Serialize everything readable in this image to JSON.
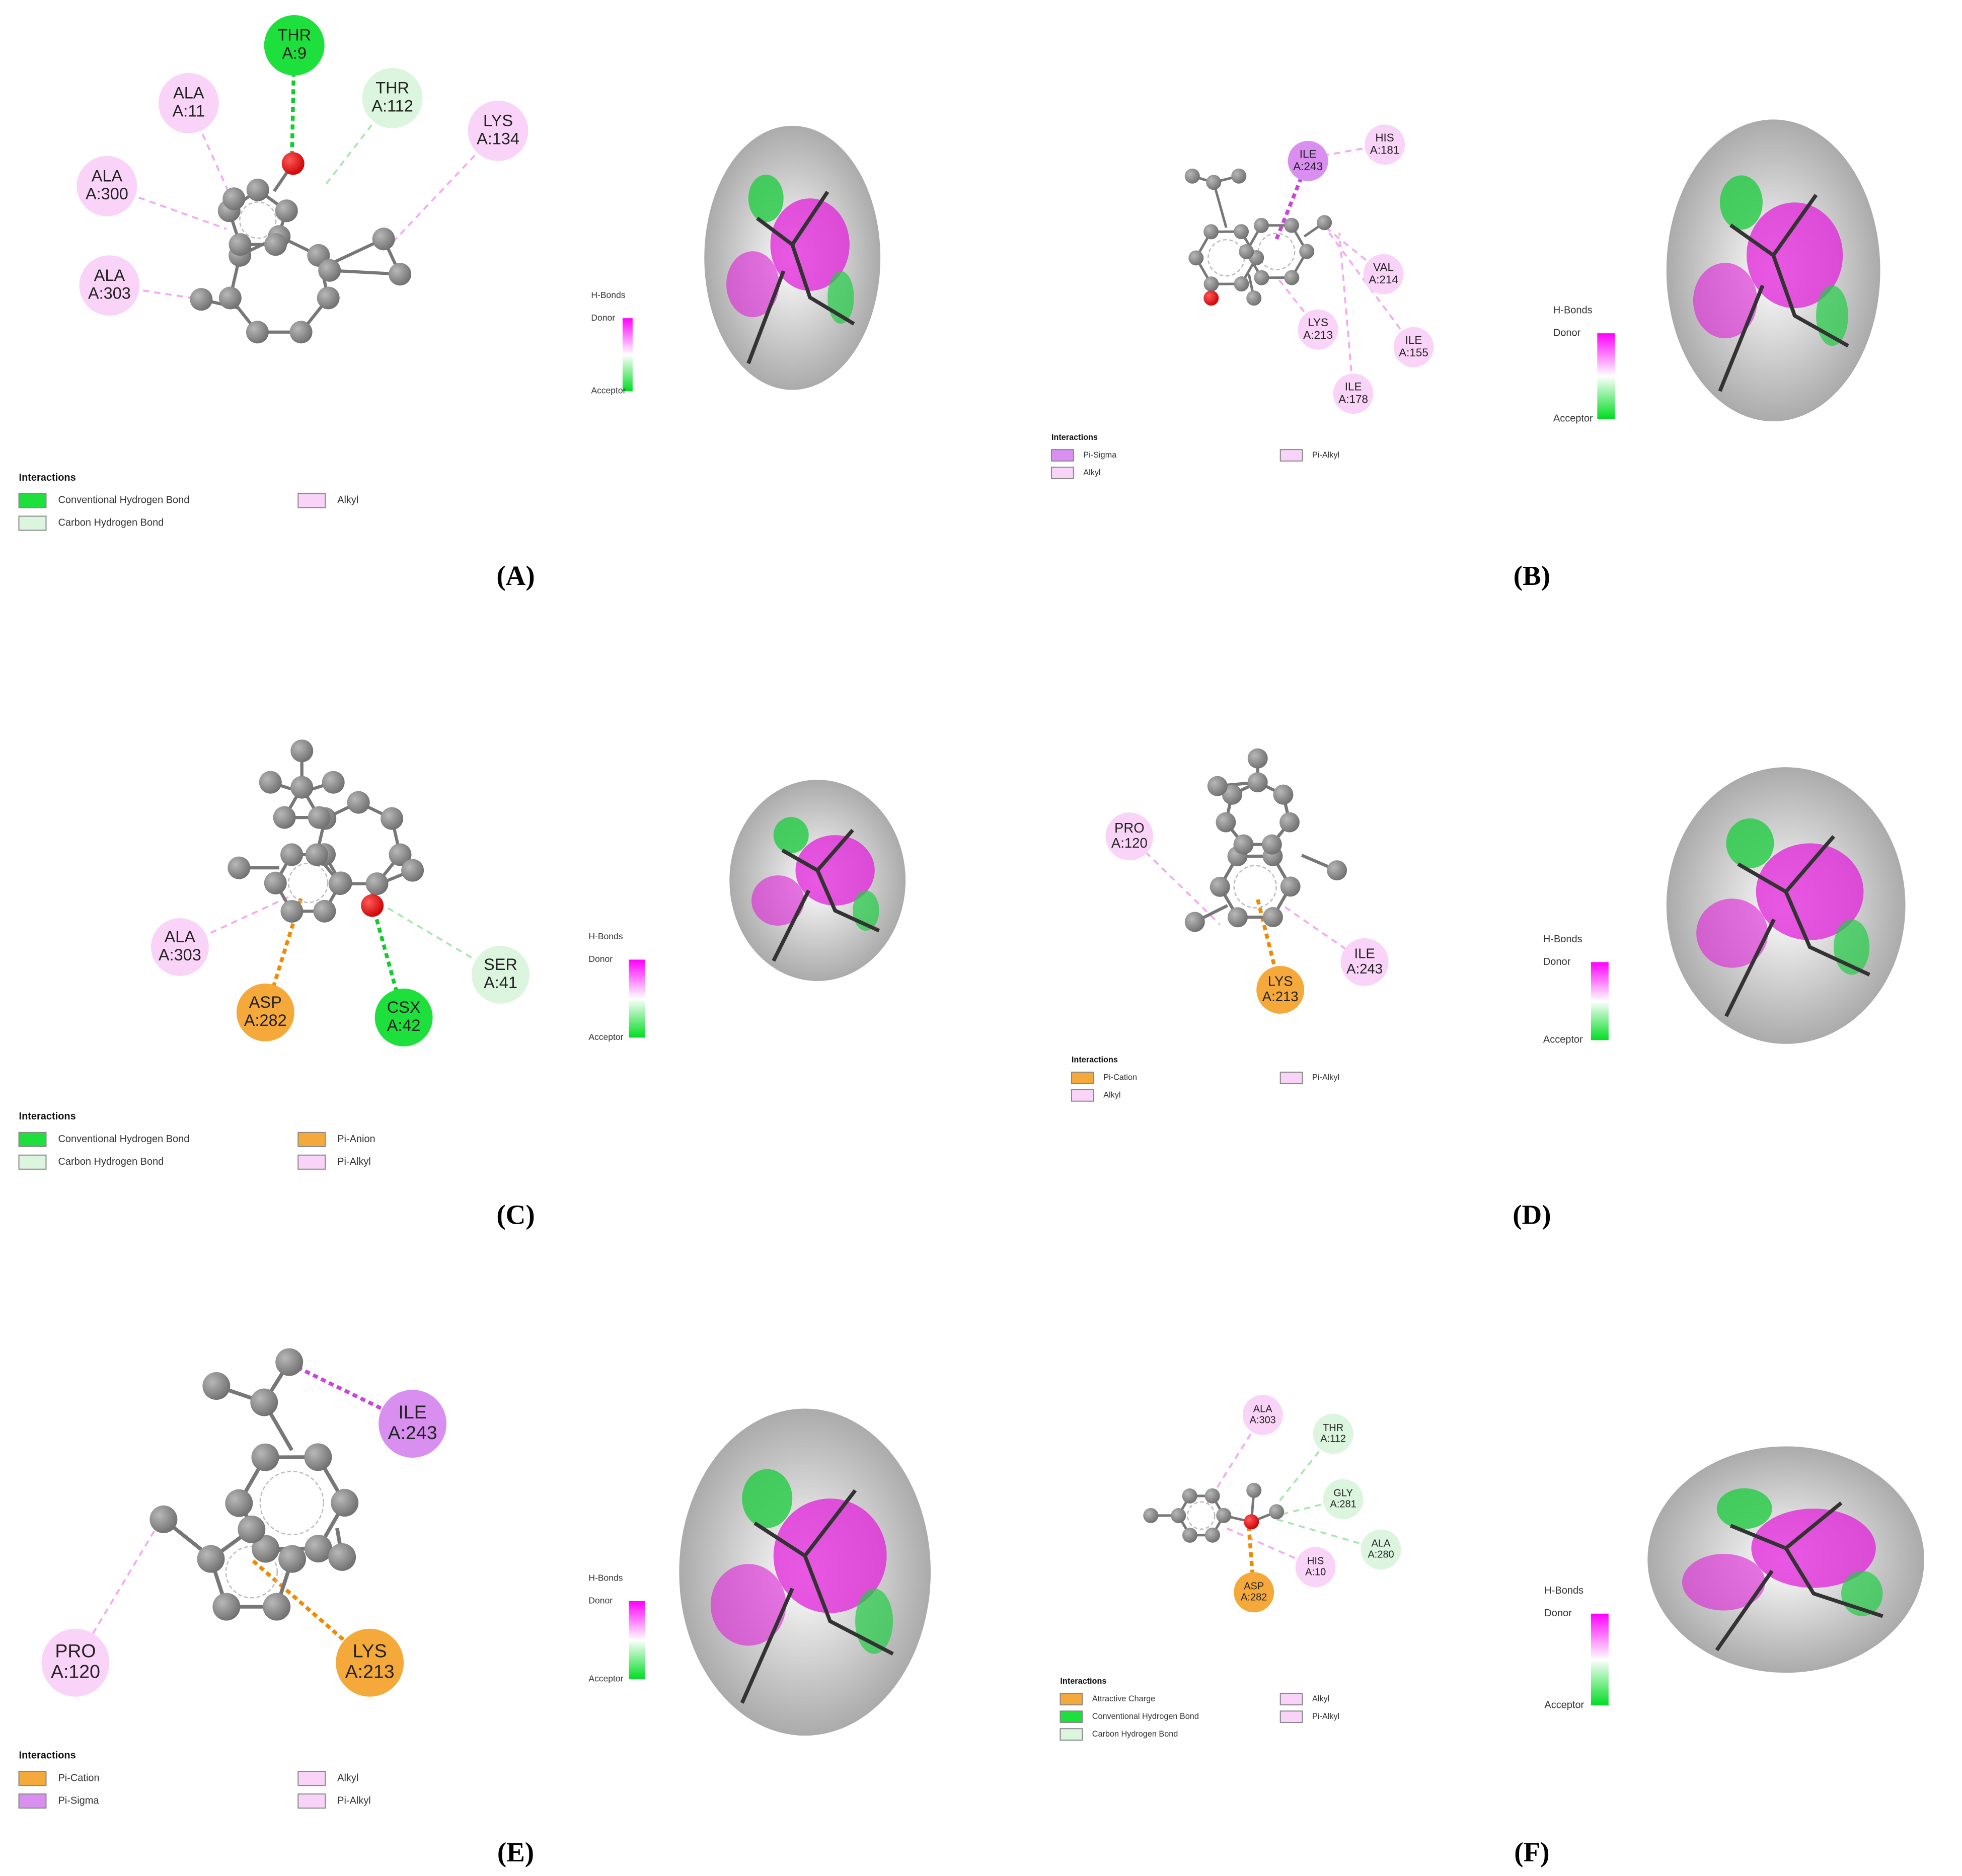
{
  "panels": [
    {
      "label": "(A)",
      "residues": [
        {
          "name": "THR",
          "id": "A:9",
          "color": "#1ee03c"
        },
        {
          "name": "THR",
          "id": "A:112",
          "color": "#dcf5df"
        },
        {
          "name": "ALA",
          "id": "A:11",
          "color": "#fad4f8"
        },
        {
          "name": "LYS",
          "id": "A:134",
          "color": "#fad4f8"
        },
        {
          "name": "ALA",
          "id": "A:300",
          "color": "#fad4f8"
        },
        {
          "name": "ALA",
          "id": "A:303",
          "color": "#fad4f8"
        }
      ],
      "legend_title": "Interactions",
      "legend": [
        {
          "name": "Conventional Hydrogen Bond",
          "color": "#1ee03c"
        },
        {
          "name": "Carbon Hydrogen Bond",
          "color": "#dcf5df"
        },
        {
          "name": "Alkyl",
          "color": "#fad4f8"
        }
      ],
      "hbonds": {
        "title": "H-Bonds",
        "donor": "Donor",
        "acceptor": "Acceptor"
      }
    },
    {
      "label": "(B)",
      "residues": [
        {
          "name": "ILE",
          "id": "A:243",
          "color": "#d88ff0"
        },
        {
          "name": "HIS",
          "id": "A:181",
          "color": "#fad4f8"
        },
        {
          "name": "VAL",
          "id": "A:214",
          "color": "#fad4f8"
        },
        {
          "name": "LYS",
          "id": "A:213",
          "color": "#fad4f8"
        },
        {
          "name": "ILE",
          "id": "A:155",
          "color": "#fad4f8"
        },
        {
          "name": "ILE",
          "id": "A:178",
          "color": "#fad4f8"
        }
      ],
      "legend_title": "Interactions",
      "legend": [
        {
          "name": "Pi-Sigma",
          "color": "#d88ff0"
        },
        {
          "name": "Alkyl",
          "color": "#fad4f8"
        },
        {
          "name": "Pi-Alkyl",
          "color": "#fad4f8"
        }
      ],
      "hbonds": {
        "title": "H-Bonds",
        "donor": "Donor",
        "acceptor": "Acceptor"
      }
    },
    {
      "label": "(C)",
      "residues": [
        {
          "name": "ALA",
          "id": "A:303",
          "color": "#fad4f8"
        },
        {
          "name": "ASP",
          "id": "A:282",
          "color": "#f5a93a"
        },
        {
          "name": "CSX",
          "id": "A:42",
          "color": "#1ee03c"
        },
        {
          "name": "SER",
          "id": "A:41",
          "color": "#dcf5df"
        }
      ],
      "legend_title": "Interactions",
      "legend": [
        {
          "name": "Conventional Hydrogen Bond",
          "color": "#1ee03c"
        },
        {
          "name": "Carbon Hydrogen Bond",
          "color": "#dcf5df"
        },
        {
          "name": "Pi-Anion",
          "color": "#f5a93a"
        },
        {
          "name": "Pi-Alkyl",
          "color": "#fad4f8"
        }
      ],
      "hbonds": {
        "title": "H-Bonds",
        "donor": "Donor",
        "acceptor": "Acceptor"
      }
    },
    {
      "label": "(D)",
      "residues": [
        {
          "name": "PRO",
          "id": "A:120",
          "color": "#fad4f8"
        },
        {
          "name": "ILE",
          "id": "A:243",
          "color": "#fad4f8"
        },
        {
          "name": "LYS",
          "id": "A:213",
          "color": "#f5a93a"
        }
      ],
      "legend_title": "Interactions",
      "legend": [
        {
          "name": "Pi-Cation",
          "color": "#f5a93a"
        },
        {
          "name": "Alkyl",
          "color": "#fad4f8"
        },
        {
          "name": "Pi-Alkyl",
          "color": "#fad4f8"
        }
      ],
      "hbonds": {
        "title": "H-Bonds",
        "donor": "Donor",
        "acceptor": "Acceptor"
      }
    },
    {
      "label": "(E)",
      "residues": [
        {
          "name": "ILE",
          "id": "A:243",
          "color": "#d88ff0"
        },
        {
          "name": "PRO",
          "id": "A:120",
          "color": "#fad4f8"
        },
        {
          "name": "LYS",
          "id": "A:213",
          "color": "#f5a93a"
        }
      ],
      "legend_title": "Interactions",
      "legend": [
        {
          "name": "Pi-Cation",
          "color": "#f5a93a"
        },
        {
          "name": "Pi-Sigma",
          "color": "#d88ff0"
        },
        {
          "name": "Alkyl",
          "color": "#fad4f8"
        },
        {
          "name": "Pi-Alkyl",
          "color": "#fad4f8"
        }
      ],
      "hbonds": {
        "title": "H-Bonds",
        "donor": "Donor",
        "acceptor": "Acceptor"
      }
    },
    {
      "label": "(F)",
      "residues": [
        {
          "name": "ALA",
          "id": "A:303",
          "color": "#fad4f8"
        },
        {
          "name": "THR",
          "id": "A:112",
          "color": "#dcf5df"
        },
        {
          "name": "GLY",
          "id": "A:281",
          "color": "#dcf5df"
        },
        {
          "name": "ALA",
          "id": "A:280",
          "color": "#dcf5df"
        },
        {
          "name": "HIS",
          "id": "A:10",
          "color": "#fad4f8"
        },
        {
          "name": "ASP",
          "id": "A:282",
          "color": "#f5a93a"
        }
      ],
      "legend_title": "Interactions",
      "legend": [
        {
          "name": "Attractive Charge",
          "color": "#f5a93a"
        },
        {
          "name": "Conventional Hydrogen Bond",
          "color": "#1ee03c"
        },
        {
          "name": "Carbon Hydrogen Bond",
          "color": "#dcf5df"
        },
        {
          "name": "Alkyl",
          "color": "#fad4f8"
        },
        {
          "name": "Pi-Alkyl",
          "color": "#fad4f8"
        }
      ],
      "hbonds": {
        "title": "H-Bonds",
        "donor": "Donor",
        "acceptor": "Acceptor"
      }
    }
  ]
}
